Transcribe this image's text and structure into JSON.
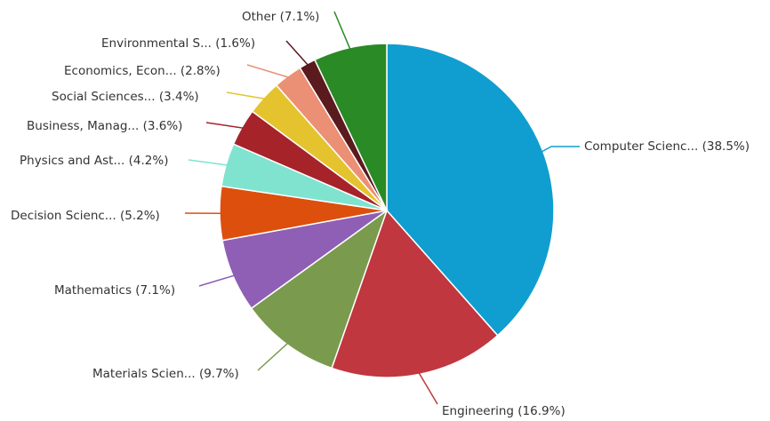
{
  "chart_data": {
    "type": "pie",
    "slices": [
      {
        "label": "Computer Scienc... (38.5%)",
        "value": 38.5,
        "color": "#0f9ecf"
      },
      {
        "label": "Engineering (16.9%)",
        "value": 16.9,
        "color": "#c0373f"
      },
      {
        "label": "Materials Scien... (9.7%)",
        "value": 9.7,
        "color": "#7a9a4e"
      },
      {
        "label": "Mathematics (7.1%)",
        "value": 7.1,
        "color": "#8e5fb5"
      },
      {
        "label": "Decision Scienc... (5.2%)",
        "value": 5.2,
        "color": "#dd4f0c"
      },
      {
        "label": "Physics and Ast... (4.2%)",
        "value": 4.2,
        "color": "#7fe3cf"
      },
      {
        "label": "Business, Manag... (3.6%)",
        "value": 3.6,
        "color": "#a6232a"
      },
      {
        "label": "Social Sciences... (3.4%)",
        "value": 3.4,
        "color": "#e5c32f"
      },
      {
        "label": "Economics, Econ... (2.8%)",
        "value": 2.8,
        "color": "#eb9075"
      },
      {
        "label": "Environmental S... (1.6%)",
        "value": 1.6,
        "color": "#5a1a1e"
      },
      {
        "label": "Other (7.1%)",
        "value": 7.1,
        "color": "#2a8a25"
      }
    ]
  }
}
